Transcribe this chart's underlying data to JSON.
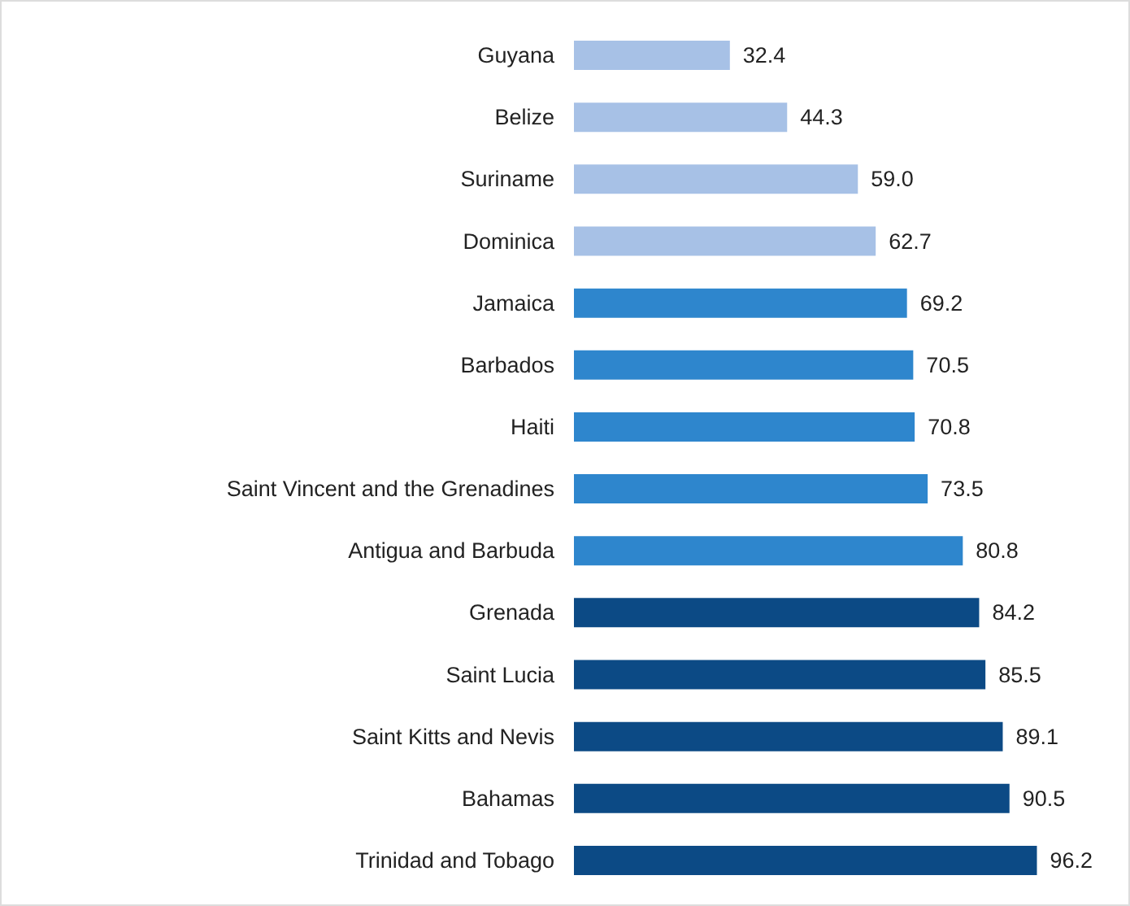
{
  "chart_data": {
    "type": "bar",
    "orientation": "horizontal",
    "value_labels": [
      "32.4",
      "44.3",
      "59.0",
      "62.7",
      "69.2",
      "70.5",
      "70.8",
      "73.5",
      "80.8",
      "84.2",
      "85.5",
      "89.1",
      "90.5",
      "96.2"
    ],
    "categories": [
      "Guyana",
      "Belize",
      "Suriname",
      "Dominica",
      "Jamaica",
      "Barbados",
      "Haiti",
      "Saint Vincent and the Grenadines",
      "Antigua and Barbuda",
      "Grenada",
      "Saint Lucia",
      "Saint Kitts and Nevis",
      "Bahamas",
      "Trinidad and Tobago"
    ],
    "values": [
      32.4,
      44.3,
      59.0,
      62.7,
      69.2,
      70.5,
      70.8,
      73.5,
      80.8,
      84.2,
      85.5,
      89.1,
      90.5,
      96.2
    ],
    "colors": [
      "#a7c1e6",
      "#a7c1e6",
      "#a7c1e6",
      "#a7c1e6",
      "#2e86cd",
      "#2e86cd",
      "#2e86cd",
      "#2e86cd",
      "#2e86cd",
      "#0c4a85",
      "#0c4a85",
      "#0c4a85",
      "#0c4a85",
      "#0c4a85"
    ]
  }
}
